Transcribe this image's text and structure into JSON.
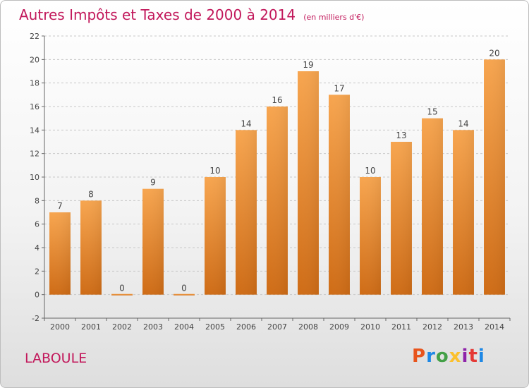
{
  "header": {
    "title": "Autres Impôts et Taxes de 2000 à 2014",
    "subtitle": "(en milliers d'€)"
  },
  "footer": {
    "commune": "LABOULE",
    "logo_text": "Proxiti",
    "logo_colors": [
      "#e8541c",
      "#1e88e5",
      "#43a047",
      "#fbc02d",
      "#8e24aa",
      "#e53935",
      "#1e88e5"
    ]
  },
  "chart_data": {
    "type": "bar",
    "title": "Autres Impôts et Taxes de 2000 à 2014",
    "subtitle": "(en milliers d'€)",
    "xlabel": "",
    "ylabel": "",
    "categories": [
      "2000",
      "2001",
      "2002",
      "2003",
      "2004",
      "2005",
      "2006",
      "2007",
      "2008",
      "2009",
      "2010",
      "2011",
      "2012",
      "2013",
      "2014"
    ],
    "values": [
      7,
      8,
      0,
      9,
      0,
      10,
      14,
      16,
      19,
      17,
      10,
      13,
      15,
      14,
      20
    ],
    "ylim": [
      -2,
      22
    ],
    "yticks": [
      -2,
      0,
      2,
      4,
      6,
      8,
      10,
      12,
      14,
      16,
      18,
      20,
      22
    ],
    "grid": "horizontal dashed",
    "bar_color_top": "#f7a54f",
    "bar_color_bottom": "#cf6c16"
  }
}
